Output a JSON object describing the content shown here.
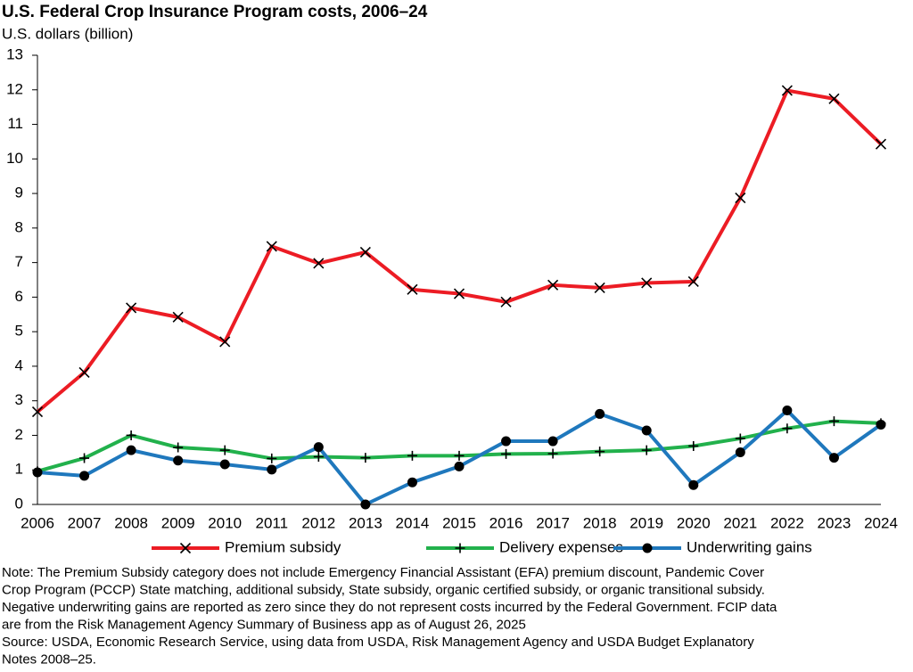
{
  "chart_data": {
    "type": "line",
    "title": "U.S. Federal Crop Insurance Program costs, 2006–24",
    "y_label": "U.S. dollars (billion)",
    "categories": [
      "2006",
      "2007",
      "2008",
      "2009",
      "2010",
      "2011",
      "2012",
      "2013",
      "2014",
      "2015",
      "2016",
      "2017",
      "2018",
      "2019",
      "2020",
      "2021",
      "2022",
      "2023",
      "2024"
    ],
    "ylim": [
      0,
      13
    ],
    "yticks": [
      0,
      1,
      2,
      3,
      4,
      5,
      6,
      7,
      8,
      9,
      10,
      11,
      12,
      13
    ],
    "series": [
      {
        "name": "Premium subsidy",
        "color": "#ec1c24",
        "marker": "x",
        "values": [
          2.68,
          3.82,
          5.69,
          5.42,
          4.71,
          7.47,
          6.98,
          7.3,
          6.22,
          6.1,
          5.86,
          6.35,
          6.27,
          6.41,
          6.45,
          8.87,
          11.98,
          11.74,
          10.43
        ]
      },
      {
        "name": "Delivery expenses",
        "color": "#22b14c",
        "marker": "plus",
        "values": [
          0.96,
          1.34,
          2.0,
          1.65,
          1.57,
          1.33,
          1.38,
          1.35,
          1.41,
          1.41,
          1.46,
          1.47,
          1.53,
          1.57,
          1.69,
          1.91,
          2.2,
          2.41,
          2.35
        ]
      },
      {
        "name": "Underwriting gains",
        "color": "#1f78bd",
        "marker": "circle",
        "values": [
          0.93,
          0.83,
          1.57,
          1.27,
          1.16,
          1.01,
          1.66,
          0.0,
          0.64,
          1.1,
          1.83,
          1.83,
          2.62,
          2.14,
          0.56,
          1.51,
          2.72,
          1.35,
          2.31
        ]
      }
    ],
    "notes": [
      "Note: The Premium Subsidy category does not include Emergency Financial Assistant (EFA) premium discount, Pandemic Cover",
      "Crop Program (PCCP) State matching, additional subsidy, State subsidy, organic certified subsidy, or organic transitional subsidy.",
      "Negative underwriting gains are reported as zero since they do not represent costs incurred by the Federal Government. FCIP data",
      "are from the Risk Management Agency Summary of Business app as of August 26, 2025",
      "Source: USDA, Economic Research Service, using data from USDA, Risk Management Agency and USDA Budget Explanatory",
      "Notes 2008–25."
    ]
  }
}
